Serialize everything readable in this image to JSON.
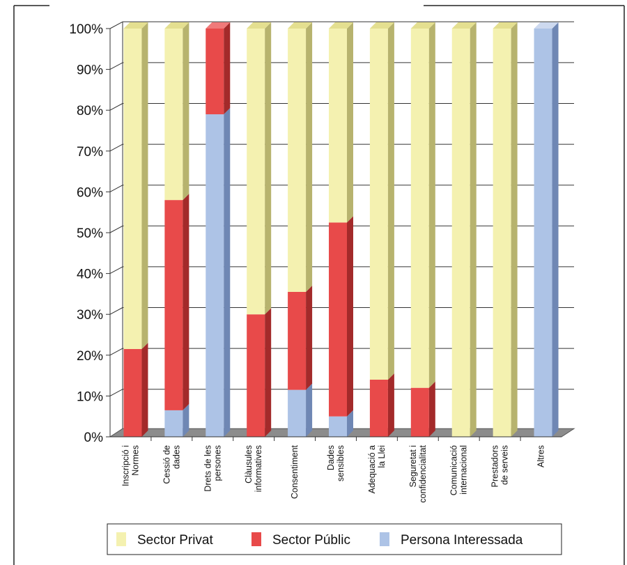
{
  "chart_data": {
    "type": "bar",
    "stacked": true,
    "three_d": true,
    "categories": [
      [
        "Inscripció i",
        "Normes"
      ],
      [
        "Cessió de",
        "dades"
      ],
      [
        "Drets de les",
        "persones"
      ],
      [
        "Clàusules",
        "informatives"
      ],
      [
        "Consentiment"
      ],
      [
        "Dades",
        "sensibles"
      ],
      [
        "Adequació a",
        "la Llei"
      ],
      [
        "Seguretat i",
        "confidencialitat"
      ],
      [
        "Comunicació",
        "internacional"
      ],
      [
        "Prestadors",
        "de serveis"
      ],
      [
        "Altres"
      ]
    ],
    "y_ticks": [
      "0%",
      "10%",
      "20%",
      "30%",
      "40%",
      "50%",
      "60%",
      "70%",
      "80%",
      "90%",
      "100%"
    ],
    "ylim": [
      0,
      100
    ],
    "grid": true,
    "legend_position": "bottom",
    "series": [
      {
        "name": "Persona Interessada",
        "color": "#adc3e6",
        "side": "#6f87b4",
        "top": "#cdd9ef",
        "values": [
          0,
          6.5,
          79,
          0,
          11.5,
          5,
          0,
          0,
          0,
          0,
          100
        ]
      },
      {
        "name": "Sector Públic",
        "color": "#e84a4a",
        "side": "#a32a2a",
        "top": "#f07a7a",
        "values": [
          21.5,
          51.5,
          21,
          30,
          24,
          47.5,
          14,
          12,
          0,
          0,
          0
        ]
      },
      {
        "name": "Sector Privat",
        "color": "#f4f1b0",
        "side": "#b7b36e",
        "top": "#e4df90",
        "values": [
          78.5,
          42,
          0,
          70,
          64.5,
          47.5,
          86,
          88,
          100,
          100,
          0
        ]
      }
    ],
    "legend_order": [
      "Sector Privat",
      "Sector Públic",
      "Persona Interessada"
    ]
  }
}
